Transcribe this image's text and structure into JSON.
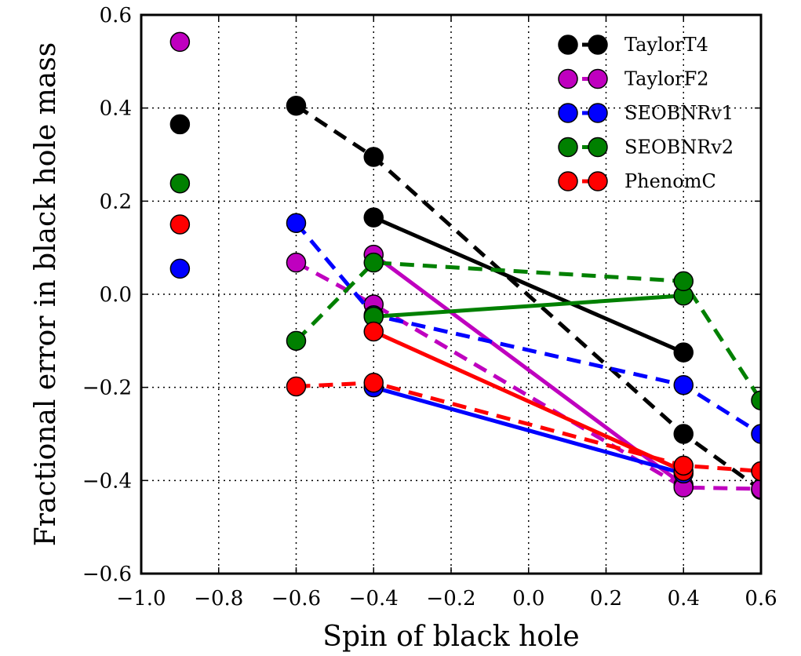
{
  "chart_data": {
    "type": "line",
    "title": "",
    "xlabel": "Spin of black hole",
    "ylabel": "Fractional error in black hole mass",
    "xlim": [
      -1.0,
      0.6
    ],
    "ylim": [
      -0.6,
      0.6
    ],
    "xticks": [
      -1.0,
      -0.8,
      -0.6,
      -0.4,
      -0.2,
      0.0,
      0.2,
      0.4,
      0.6
    ],
    "yticks": [
      -0.6,
      -0.4,
      -0.2,
      0.0,
      0.2,
      0.4,
      0.6
    ],
    "xtick_labels": [
      "−1.0",
      "−0.8",
      "−0.6",
      "−0.4",
      "−0.2",
      "0.0",
      "0.2",
      "0.4",
      "0.6"
    ],
    "ytick_labels": [
      "−0.6",
      "−0.4",
      "−0.2",
      "0.0",
      "0.2",
      "0.4",
      "0.6"
    ],
    "grid": true,
    "grid_style": "dotted",
    "legend_position": "top-right",
    "series": [
      {
        "name": "TaylorT4",
        "color": "#000000",
        "solid": [
          [
            -0.4,
            0.165
          ],
          [
            0.4,
            -0.125
          ]
        ],
        "dashed": [
          [
            -0.6,
            0.405
          ],
          [
            -0.4,
            0.295
          ],
          [
            0.4,
            -0.3
          ],
          [
            0.6,
            -0.42
          ]
        ],
        "points": [
          [
            -0.9,
            0.365
          ]
        ]
      },
      {
        "name": "TaylorF2",
        "color": "#bf00bf",
        "solid": [
          [
            -0.4,
            0.085
          ],
          [
            0.4,
            -0.41
          ]
        ],
        "dashed": [
          [
            -0.6,
            0.068
          ],
          [
            -0.4,
            -0.022
          ],
          [
            0.4,
            -0.415
          ],
          [
            0.6,
            -0.418
          ]
        ],
        "points": [
          [
            -0.9,
            0.542
          ]
        ]
      },
      {
        "name": "SEOBNRv1",
        "color": "#0000ff",
        "solid": [
          [
            -0.4,
            -0.2
          ],
          [
            0.4,
            -0.385
          ]
        ],
        "dashed": [
          [
            -0.6,
            0.153
          ],
          [
            -0.4,
            -0.045
          ],
          [
            0.4,
            -0.195
          ],
          [
            0.6,
            -0.3
          ]
        ],
        "points": [
          [
            -0.9,
            0.055
          ]
        ]
      },
      {
        "name": "SEOBNRv2",
        "color": "#008000",
        "solid": [
          [
            -0.4,
            -0.048
          ],
          [
            0.4,
            -0.003
          ]
        ],
        "dashed": [
          [
            -0.6,
            -0.1
          ],
          [
            -0.4,
            0.068
          ],
          [
            0.4,
            0.028
          ],
          [
            0.6,
            -0.228
          ]
        ],
        "points": [
          [
            -0.9,
            0.238
          ]
        ]
      },
      {
        "name": "PhenomC",
        "color": "#ff0000",
        "solid": [
          [
            -0.4,
            -0.08
          ],
          [
            0.4,
            -0.38
          ]
        ],
        "dashed": [
          [
            -0.6,
            -0.198
          ],
          [
            -0.4,
            -0.19
          ],
          [
            0.4,
            -0.368
          ],
          [
            0.6,
            -0.38
          ]
        ],
        "points": [
          [
            -0.9,
            0.15
          ]
        ]
      }
    ]
  }
}
